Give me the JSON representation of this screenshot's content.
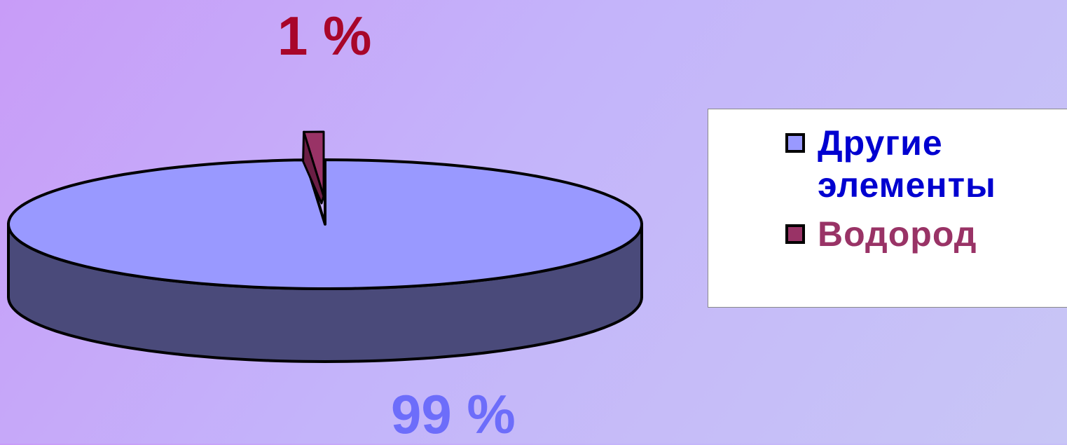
{
  "chart_data": {
    "type": "pie",
    "style": "3d-exploded",
    "categories": [
      "Другие элементы",
      "Водород"
    ],
    "values": [
      99,
      1
    ],
    "data_labels": [
      "99 %",
      "1 %"
    ],
    "colors": {
      "slice_top": [
        "#9999ff",
        "#993366"
      ],
      "slice_side": [
        "#4a4a7a",
        "#6b1e44"
      ],
      "labels": [
        "#6d6dfa",
        "#a8062a"
      ],
      "legend_text": [
        "#0000d0",
        "#993366"
      ]
    },
    "legend": {
      "position": "right",
      "entries": [
        "Другие элементы",
        "Водород"
      ]
    }
  }
}
